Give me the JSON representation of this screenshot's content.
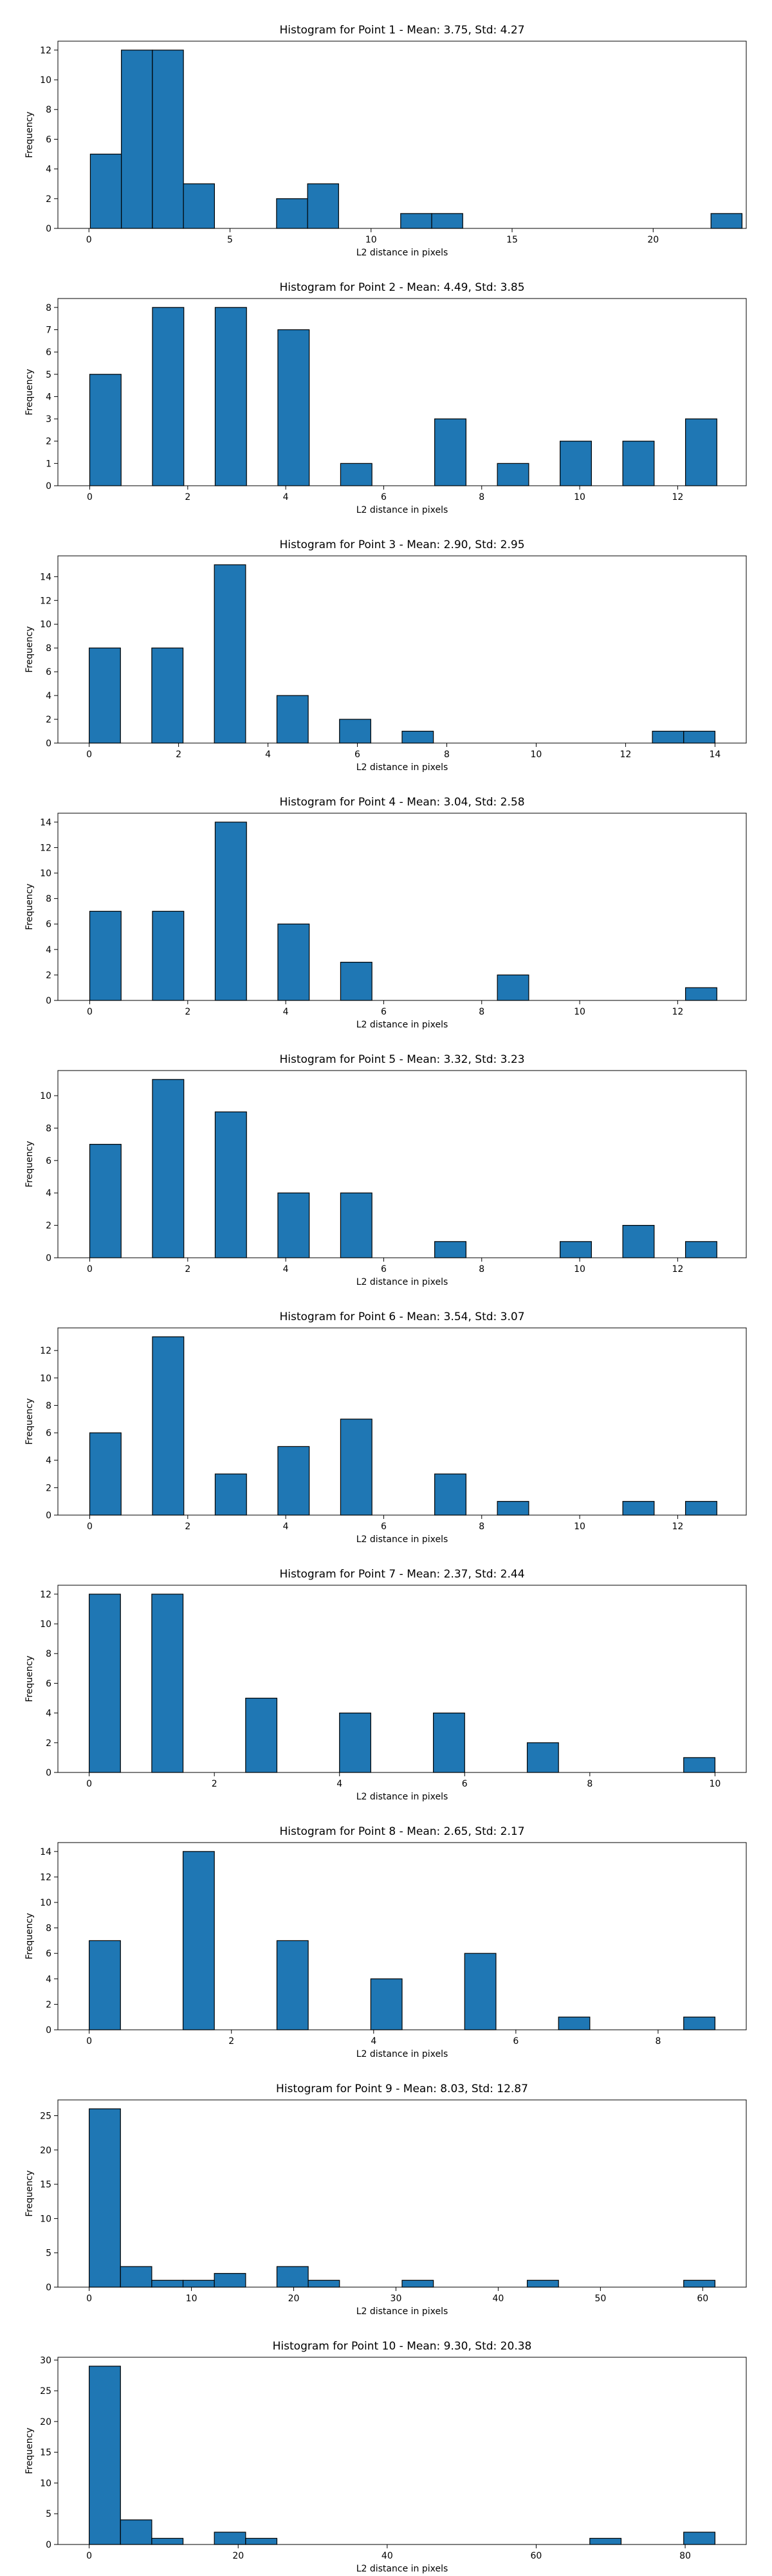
{
  "chart_data": [
    {
      "type": "bar",
      "title": "Histogram for Point 1 - Mean: 3.75, Std: 4.27",
      "xlabel": "L2 distance in pixels",
      "ylabel": "Frequency",
      "xlim": [
        -1.1,
        23.3
      ],
      "ylim": [
        0,
        12.6
      ],
      "xticks": [
        0,
        5,
        10,
        15,
        20
      ],
      "yticks": [
        0,
        2,
        4,
        6,
        8,
        10,
        12
      ],
      "bin_edges": [
        0.05,
        1.15,
        2.25,
        3.35,
        4.45,
        5.55,
        6.65,
        7.75,
        8.85,
        9.95,
        11.05,
        12.15,
        13.25,
        14.35,
        15.45,
        16.55,
        17.65,
        18.75,
        19.85,
        20.95,
        22.05,
        23.15
      ],
      "values": [
        5,
        12,
        12,
        3,
        0,
        0,
        2,
        3,
        0,
        0,
        1,
        1,
        0,
        0,
        0,
        0,
        0,
        0,
        0,
        0,
        1
      ]
    },
    {
      "type": "bar",
      "title": "Histogram for Point 2 - Mean: 4.49, Std: 3.85",
      "xlabel": "L2 distance in pixels",
      "ylabel": "Frequency",
      "xlim": [
        -0.65,
        13.4
      ],
      "ylim": [
        0,
        8.4
      ],
      "xticks": [
        0,
        2,
        4,
        6,
        8,
        10,
        12
      ],
      "yticks": [
        0,
        1,
        2,
        3,
        4,
        5,
        6,
        7,
        8
      ],
      "bin_edges": [
        0,
        0.64,
        1.28,
        1.92,
        2.56,
        3.2,
        3.84,
        4.48,
        5.12,
        5.76,
        6.4,
        7.04,
        7.68,
        8.32,
        8.96,
        9.6,
        10.24,
        10.88,
        11.52,
        12.16,
        12.8
      ],
      "values": [
        5,
        0,
        8,
        0,
        8,
        0,
        7,
        0,
        1,
        0,
        0,
        3,
        0,
        1,
        0,
        2,
        0,
        2,
        0,
        3
      ]
    },
    {
      "type": "bar",
      "title": "Histogram for Point 3 - Mean: 2.90, Std: 2.95",
      "xlabel": "L2 distance in pixels",
      "ylabel": "Frequency",
      "xlim": [
        -0.7,
        14.7
      ],
      "ylim": [
        0,
        15.75
      ],
      "xticks": [
        0,
        2,
        4,
        6,
        8,
        10,
        12,
        14
      ],
      "yticks": [
        0,
        2,
        4,
        6,
        8,
        10,
        12,
        14
      ],
      "bin_edges": [
        0,
        0.7,
        1.4,
        2.1,
        2.8,
        3.5,
        4.2,
        4.9,
        5.6,
        6.3,
        7.0,
        7.7,
        8.4,
        9.1,
        9.8,
        10.5,
        11.2,
        11.9,
        12.6,
        13.3,
        14.0
      ],
      "values": [
        8,
        0,
        8,
        0,
        15,
        0,
        4,
        0,
        2,
        0,
        1,
        0,
        0,
        0,
        0,
        0,
        0,
        0,
        1,
        1
      ]
    },
    {
      "type": "bar",
      "title": "Histogram for Point 4 - Mean: 3.04, Std: 2.58",
      "xlabel": "L2 distance in pixels",
      "ylabel": "Frequency",
      "xlim": [
        -0.65,
        13.4
      ],
      "ylim": [
        0,
        14.7
      ],
      "xticks": [
        0,
        2,
        4,
        6,
        8,
        10,
        12
      ],
      "yticks": [
        0,
        2,
        4,
        6,
        8,
        10,
        12,
        14
      ],
      "bin_edges": [
        0,
        0.64,
        1.28,
        1.92,
        2.56,
        3.2,
        3.84,
        4.48,
        5.12,
        5.76,
        6.4,
        7.04,
        7.68,
        8.32,
        8.96,
        9.6,
        10.24,
        10.88,
        11.52,
        12.16,
        12.8
      ],
      "values": [
        7,
        0,
        7,
        0,
        14,
        0,
        6,
        0,
        3,
        0,
        0,
        0,
        0,
        2,
        0,
        0,
        0,
        0,
        0,
        1
      ]
    },
    {
      "type": "bar",
      "title": "Histogram for Point 5 - Mean: 3.32, Std: 3.23",
      "xlabel": "L2 distance in pixels",
      "ylabel": "Frequency",
      "xlim": [
        -0.65,
        13.4
      ],
      "ylim": [
        0,
        11.55
      ],
      "xticks": [
        0,
        2,
        4,
        6,
        8,
        10,
        12
      ],
      "yticks": [
        0,
        2,
        4,
        6,
        8,
        10
      ],
      "bin_edges": [
        0,
        0.64,
        1.28,
        1.92,
        2.56,
        3.2,
        3.84,
        4.48,
        5.12,
        5.76,
        6.4,
        7.04,
        7.68,
        8.32,
        8.96,
        9.6,
        10.24,
        10.88,
        11.52,
        12.16,
        12.8
      ],
      "values": [
        7,
        0,
        11,
        0,
        9,
        0,
        4,
        0,
        4,
        0,
        0,
        1,
        0,
        0,
        0,
        1,
        0,
        2,
        0,
        1
      ]
    },
    {
      "type": "bar",
      "title": "Histogram for Point 6 - Mean: 3.54, Std: 3.07",
      "xlabel": "L2 distance in pixels",
      "ylabel": "Frequency",
      "xlim": [
        -0.65,
        13.4
      ],
      "ylim": [
        0,
        13.65
      ],
      "xticks": [
        0,
        2,
        4,
        6,
        8,
        10,
        12
      ],
      "yticks": [
        0,
        2,
        4,
        6,
        8,
        10,
        12
      ],
      "bin_edges": [
        0,
        0.64,
        1.28,
        1.92,
        2.56,
        3.2,
        3.84,
        4.48,
        5.12,
        5.76,
        6.4,
        7.04,
        7.68,
        8.32,
        8.96,
        9.6,
        10.24,
        10.88,
        11.52,
        12.16,
        12.8
      ],
      "values": [
        6,
        0,
        13,
        0,
        3,
        0,
        5,
        0,
        7,
        0,
        0,
        3,
        0,
        1,
        0,
        0,
        0,
        1,
        0,
        1
      ]
    },
    {
      "type": "bar",
      "title": "Histogram for Point 7 - Mean: 2.37, Std: 2.44",
      "xlabel": "L2 distance in pixels",
      "ylabel": "Frequency",
      "xlim": [
        -0.5,
        10.5
      ],
      "ylim": [
        0,
        12.6
      ],
      "xticks": [
        0,
        2,
        4,
        6,
        8,
        10
      ],
      "yticks": [
        0,
        2,
        4,
        6,
        8,
        10,
        12
      ],
      "bin_edges": [
        0,
        0.5,
        1.0,
        1.5,
        2.0,
        2.5,
        3.0,
        3.5,
        4.0,
        4.5,
        5.0,
        5.5,
        6.0,
        6.5,
        7.0,
        7.5,
        8.0,
        8.5,
        9.0,
        9.5,
        10.0
      ],
      "values": [
        12,
        0,
        12,
        0,
        0,
        5,
        0,
        0,
        4,
        0,
        0,
        4,
        0,
        0,
        2,
        0,
        0,
        0,
        0,
        1
      ]
    },
    {
      "type": "bar",
      "title": "Histogram for Point 8 - Mean: 2.65, Std: 2.17",
      "xlabel": "L2 distance in pixels",
      "ylabel": "Frequency",
      "xlim": [
        -0.44,
        9.24
      ],
      "ylim": [
        0,
        14.7
      ],
      "xticks": [
        0,
        2,
        4,
        6,
        8
      ],
      "yticks": [
        0,
        2,
        4,
        6,
        8,
        10,
        12,
        14
      ],
      "bin_edges": [
        0,
        0.44,
        0.88,
        1.32,
        1.76,
        2.2,
        2.64,
        3.08,
        3.52,
        3.96,
        4.4,
        4.84,
        5.28,
        5.72,
        6.16,
        6.6,
        7.04,
        7.48,
        7.92,
        8.36,
        8.8
      ],
      "values": [
        7,
        0,
        0,
        14,
        0,
        0,
        7,
        0,
        0,
        4,
        0,
        0,
        6,
        0,
        0,
        1,
        0,
        0,
        0,
        1
      ]
    },
    {
      "type": "bar",
      "title": "Histogram for Point 9 - Mean: 8.03, Std: 12.87",
      "xlabel": "L2 distance in pixels",
      "ylabel": "Frequency",
      "xlim": [
        -3.06,
        64.26
      ],
      "ylim": [
        0,
        27.3
      ],
      "xticks": [
        0,
        10,
        20,
        30,
        40,
        50,
        60
      ],
      "yticks": [
        0,
        5,
        10,
        15,
        20,
        25
      ],
      "bin_edges": [
        0,
        3.06,
        6.12,
        9.18,
        12.24,
        15.3,
        18.36,
        21.42,
        24.48,
        27.54,
        30.6,
        33.66,
        36.72,
        39.78,
        42.84,
        45.9,
        48.96,
        52.02,
        55.08,
        58.14,
        61.2
      ],
      "values": [
        26,
        3,
        1,
        1,
        2,
        0,
        3,
        1,
        0,
        0,
        1,
        0,
        0,
        0,
        1,
        0,
        0,
        0,
        0,
        1
      ]
    },
    {
      "type": "bar",
      "title": "Histogram for Point 10 - Mean: 9.30, Std: 20.38",
      "xlabel": "L2 distance in pixels",
      "ylabel": "Frequency",
      "xlim": [
        -4.2,
        88.2
      ],
      "ylim": [
        0,
        30.45
      ],
      "xticks": [
        0,
        20,
        40,
        60,
        80
      ],
      "yticks": [
        0,
        5,
        10,
        15,
        20,
        25,
        30
      ],
      "bin_edges": [
        0,
        4.2,
        8.4,
        12.6,
        16.8,
        21.0,
        25.2,
        29.4,
        33.6,
        37.8,
        42.0,
        46.2,
        50.4,
        54.6,
        58.8,
        63.0,
        67.2,
        71.4,
        75.6,
        79.8,
        84.0
      ],
      "values": [
        29,
        4,
        1,
        0,
        2,
        1,
        0,
        0,
        0,
        0,
        0,
        0,
        0,
        0,
        0,
        0,
        1,
        0,
        0,
        2
      ]
    }
  ],
  "colors": {
    "bar_fill": "#1f77b4",
    "bar_edge": "#000000",
    "axes": "#000000",
    "background": "#ffffff"
  }
}
